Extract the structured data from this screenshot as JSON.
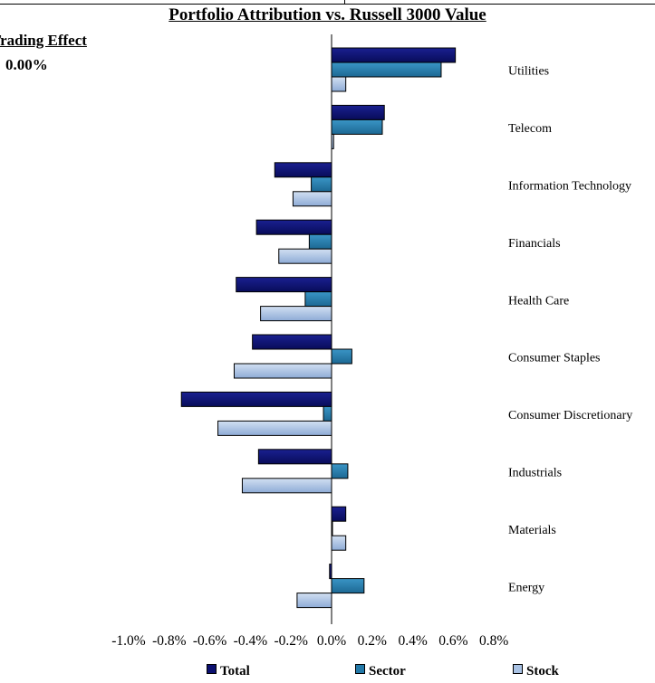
{
  "header": {
    "title": "Portfolio Attribution vs. Russell 3000 Value",
    "trading_effect_label": "Trading Effect",
    "trading_effect_value": "0.00%"
  },
  "colors": {
    "total": "#0c1070",
    "sector": "#2379a8",
    "stock": "#a9c2e4"
  },
  "chart_data": {
    "type": "bar",
    "orientation": "horizontal",
    "title": "Portfolio Attribution vs. Russell 3000 Value",
    "categories": [
      "Utilities",
      "Telecom",
      "Information Technology",
      "Financials",
      "Health Care",
      "Consumer Staples",
      "Consumer Discretionary",
      "Industrials",
      "Materials",
      "Energy"
    ],
    "series": [
      {
        "name": "Total",
        "values": [
          0.61,
          0.26,
          -0.28,
          -0.37,
          -0.47,
          -0.39,
          -0.74,
          -0.36,
          0.07,
          -0.01
        ]
      },
      {
        "name": "Sector",
        "values": [
          0.54,
          0.25,
          -0.1,
          -0.11,
          -0.13,
          0.1,
          -0.04,
          0.08,
          0.0,
          0.16
        ]
      },
      {
        "name": "Stock",
        "values": [
          0.07,
          0.01,
          -0.19,
          -0.26,
          -0.35,
          -0.48,
          -0.56,
          -0.44,
          0.07,
          -0.17
        ]
      }
    ],
    "xlim": [
      -1.0,
      0.8
    ],
    "x_ticks": [
      "-1.0%",
      "-0.8%",
      "-0.6%",
      "-0.4%",
      "-0.2%",
      "0.0%",
      "0.2%",
      "0.4%",
      "0.6%",
      "0.8%"
    ],
    "legend": [
      "Total",
      "Sector",
      "Stock"
    ],
    "legend_position": "bottom",
    "grid": false
  }
}
